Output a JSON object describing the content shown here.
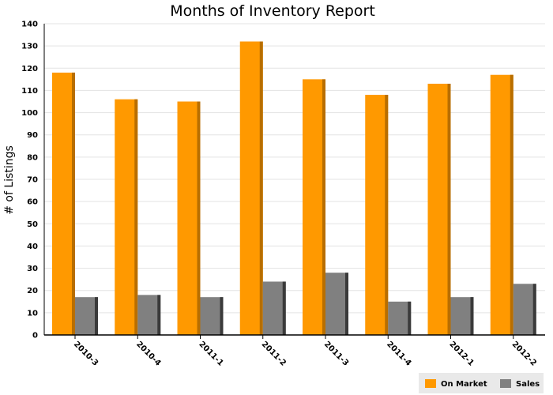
{
  "chart_data": {
    "type": "bar",
    "title": "Months of Inventory Report",
    "xlabel": "",
    "ylabel": "# of Listings",
    "ylim": [
      0,
      140
    ],
    "yticks": [
      0,
      10,
      20,
      30,
      40,
      50,
      60,
      70,
      80,
      90,
      100,
      110,
      120,
      130,
      140
    ],
    "grid": true,
    "legend_position": "bottom-right",
    "categories": [
      "2010-3",
      "2010-4",
      "2011-1",
      "2011-2",
      "2011-3",
      "2011-4",
      "2012-1",
      "2012-2"
    ],
    "series": [
      {
        "name": "On Market",
        "color": "#ff9900",
        "values": [
          118,
          106,
          105,
          132,
          115,
          108,
          113,
          117
        ]
      },
      {
        "name": "Sales",
        "color": "#808080",
        "values": [
          17,
          18,
          17,
          24,
          28,
          15,
          17,
          23
        ]
      }
    ]
  }
}
